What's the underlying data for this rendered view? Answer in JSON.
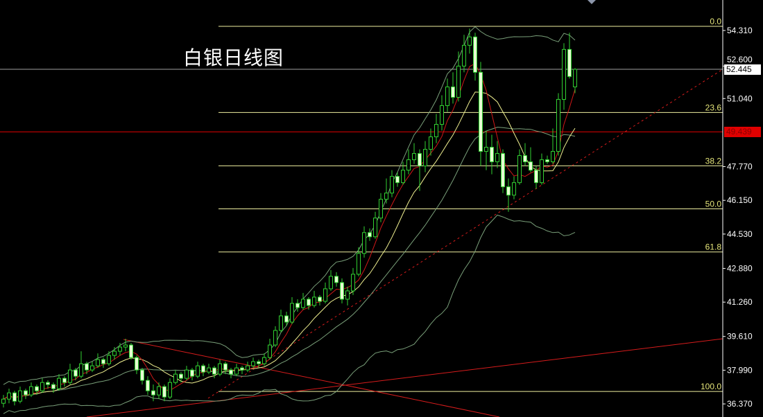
{
  "title": "白银日线图",
  "current_price": "52.445",
  "red_level": "49.439",
  "colors": {
    "background": "#000000",
    "bull": "#32d232",
    "bear_fill": "#e6ffd2",
    "ma_fast": "#d01818",
    "ma_slow": "#f0f090",
    "bands": "#7aa07a",
    "fib": "#f0f0a0",
    "trend": "#d81c1c",
    "current_line": "#a0a0a0",
    "red_level_line": "#e00000"
  },
  "chart_data": {
    "type": "candlestick",
    "title": "白银日线图",
    "ylim": [
      35.7,
      55.8
    ],
    "y_ticks": [
      "54.310",
      "52.600",
      "51.040",
      "47.770",
      "46.150",
      "44.530",
      "42.880",
      "41.260",
      "39.610",
      "37.990",
      "36.370"
    ],
    "grid": false,
    "indicators": [
      "moving average (red)",
      "moving average (yellow)",
      "bollinger bands"
    ],
    "fib_levels": [
      {
        "label": "0.0",
        "price": 54.51
      },
      {
        "label": "23.6",
        "price": 50.37
      },
      {
        "label": "38.2",
        "price": 47.81
      },
      {
        "label": "50.0",
        "price": 45.74
      },
      {
        "label": "61.8",
        "price": 43.67
      },
      {
        "label": "100.0",
        "price": 36.97
      }
    ],
    "horizontal_lines": [
      {
        "price": 52.445,
        "label": "52.445"
      },
      {
        "price": 49.439,
        "label": "49.439"
      }
    ],
    "ohlc": [
      [
        36.4,
        36.8,
        36.2,
        36.6
      ],
      [
        36.6,
        37.1,
        36.4,
        36.9
      ],
      [
        36.9,
        37.0,
        36.3,
        36.5
      ],
      [
        36.5,
        37.2,
        36.4,
        37.0
      ],
      [
        37.0,
        37.1,
        36.6,
        36.8
      ],
      [
        36.8,
        37.4,
        36.7,
        37.2
      ],
      [
        37.2,
        37.3,
        36.8,
        37.0
      ],
      [
        37.0,
        37.6,
        36.9,
        37.4
      ],
      [
        37.4,
        37.5,
        37.1,
        37.3
      ],
      [
        37.3,
        37.4,
        36.9,
        37.1
      ],
      [
        37.1,
        37.8,
        37.0,
        37.6
      ],
      [
        37.6,
        37.7,
        37.2,
        37.4
      ],
      [
        37.4,
        38.3,
        37.3,
        38.0
      ],
      [
        38.0,
        38.1,
        37.5,
        37.7
      ],
      [
        37.7,
        38.9,
        37.6,
        38.3
      ],
      [
        38.3,
        38.4,
        37.8,
        38.0
      ],
      [
        38.0,
        38.4,
        37.9,
        38.2
      ],
      [
        38.2,
        38.8,
        38.1,
        38.5
      ],
      [
        38.5,
        38.6,
        38.1,
        38.3
      ],
      [
        38.3,
        38.9,
        38.2,
        38.7
      ],
      [
        38.7,
        39.1,
        38.5,
        38.9
      ],
      [
        38.9,
        39.3,
        38.7,
        39.1
      ],
      [
        39.1,
        39.5,
        38.9,
        39.2
      ],
      [
        39.2,
        39.3,
        38.5,
        38.6
      ],
      [
        38.6,
        38.7,
        37.8,
        38.0
      ],
      [
        38.0,
        38.1,
        37.3,
        37.5
      ],
      [
        37.5,
        37.7,
        36.8,
        37.0
      ],
      [
        37.0,
        37.3,
        36.5,
        36.8
      ],
      [
        36.8,
        37.4,
        36.6,
        37.2
      ],
      [
        37.2,
        37.3,
        36.5,
        36.7
      ],
      [
        36.7,
        37.6,
        36.6,
        37.4
      ],
      [
        37.4,
        38.0,
        37.3,
        37.8
      ],
      [
        37.8,
        37.9,
        37.4,
        37.6
      ],
      [
        37.6,
        38.2,
        37.5,
        38.0
      ],
      [
        38.0,
        38.1,
        37.5,
        37.7
      ],
      [
        37.7,
        38.4,
        37.6,
        38.2
      ],
      [
        38.2,
        38.3,
        37.7,
        37.9
      ],
      [
        37.9,
        38.3,
        37.8,
        38.1
      ],
      [
        38.1,
        38.2,
        37.6,
        37.8
      ],
      [
        37.8,
        38.5,
        37.7,
        38.3
      ],
      [
        38.3,
        38.4,
        37.8,
        38.0
      ],
      [
        38.0,
        38.1,
        37.6,
        37.8
      ],
      [
        37.8,
        38.3,
        37.7,
        38.1
      ],
      [
        38.1,
        38.2,
        37.8,
        38.0
      ],
      [
        38.0,
        38.4,
        37.9,
        38.2
      ],
      [
        38.2,
        38.6,
        38.1,
        38.4
      ],
      [
        38.4,
        38.5,
        38.1,
        38.3
      ],
      [
        38.3,
        38.8,
        38.2,
        38.6
      ],
      [
        38.6,
        39.5,
        38.5,
        39.2
      ],
      [
        39.2,
        40.1,
        39.1,
        39.9
      ],
      [
        39.9,
        40.9,
        39.8,
        40.6
      ],
      [
        40.6,
        40.8,
        40.1,
        40.3
      ],
      [
        40.3,
        41.5,
        40.2,
        41.2
      ],
      [
        41.2,
        41.4,
        40.8,
        41.0
      ],
      [
        41.0,
        41.7,
        40.9,
        41.4
      ],
      [
        41.4,
        41.5,
        40.9,
        41.1
      ],
      [
        41.1,
        41.8,
        41.0,
        41.5
      ],
      [
        41.5,
        41.6,
        41.1,
        41.3
      ],
      [
        41.3,
        42.2,
        41.2,
        41.9
      ],
      [
        41.9,
        42.8,
        41.8,
        42.5
      ],
      [
        42.5,
        42.7,
        42.0,
        42.2
      ],
      [
        42.2,
        42.4,
        41.2,
        41.4
      ],
      [
        41.4,
        42.0,
        41.1,
        41.8
      ],
      [
        41.8,
        42.9,
        41.6,
        42.6
      ],
      [
        42.6,
        43.9,
        42.5,
        43.6
      ],
      [
        43.6,
        44.9,
        43.4,
        44.6
      ],
      [
        44.6,
        44.8,
        44.2,
        44.4
      ],
      [
        44.4,
        45.6,
        44.3,
        45.3
      ],
      [
        45.3,
        46.5,
        45.1,
        46.2
      ],
      [
        46.2,
        47.2,
        46.0,
        46.5
      ],
      [
        46.5,
        47.6,
        46.3,
        47.3
      ],
      [
        47.3,
        47.5,
        46.8,
        47.0
      ],
      [
        47.0,
        48.0,
        46.9,
        47.6
      ],
      [
        47.6,
        48.6,
        47.4,
        48.1
      ],
      [
        48.1,
        48.9,
        47.9,
        48.4
      ],
      [
        48.4,
        48.6,
        46.6,
        47.8
      ],
      [
        47.8,
        49.0,
        47.5,
        48.6
      ],
      [
        48.6,
        49.6,
        48.3,
        49.2
      ],
      [
        49.2,
        50.3,
        48.9,
        49.8
      ],
      [
        49.8,
        51.2,
        49.5,
        50.7
      ],
      [
        50.7,
        52.0,
        50.4,
        51.6
      ],
      [
        51.6,
        52.3,
        50.8,
        51.1
      ],
      [
        51.1,
        53.3,
        50.9,
        52.6
      ],
      [
        52.6,
        54.1,
        52.3,
        53.6
      ],
      [
        53.6,
        54.4,
        53.2,
        54.0
      ],
      [
        54.0,
        54.2,
        51.9,
        52.3
      ],
      [
        52.3,
        52.8,
        47.8,
        48.5
      ],
      [
        48.5,
        49.5,
        47.6,
        48.7
      ],
      [
        48.7,
        49.3,
        47.4,
        48.0
      ],
      [
        48.0,
        49.0,
        47.7,
        48.4
      ],
      [
        48.4,
        48.6,
        46.5,
        46.8
      ],
      [
        46.8,
        47.2,
        45.6,
        46.4
      ],
      [
        46.4,
        47.3,
        46.2,
        47.0
      ],
      [
        47.0,
        48.6,
        46.9,
        48.3
      ],
      [
        48.3,
        48.9,
        47.8,
        48.0
      ],
      [
        48.0,
        48.7,
        47.5,
        47.6
      ],
      [
        47.6,
        47.8,
        46.7,
        47.0
      ],
      [
        47.0,
        48.4,
        46.9,
        48.1
      ],
      [
        48.1,
        48.3,
        47.9,
        48.0
      ],
      [
        48.0,
        49.6,
        47.9,
        48.5
      ],
      [
        48.5,
        51.3,
        48.3,
        51.0
      ],
      [
        51.0,
        53.7,
        50.5,
        53.4
      ],
      [
        53.4,
        54.2,
        52.0,
        52.1
      ],
      [
        51.6,
        52.5,
        51.3,
        52.445
      ]
    ]
  }
}
